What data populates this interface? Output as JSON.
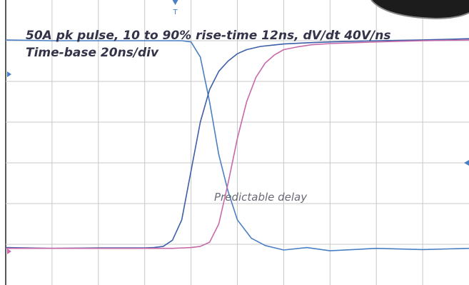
{
  "chart_data": {
    "type": "line",
    "title": "50A pk pulse, 10 to 90% rise-time 12ns, dV/dt 40V/ns",
    "subtitle": "Time-base 20ns/div",
    "xlabel": "",
    "ylabel": "",
    "x_divisions": 10,
    "y_divisions": 7,
    "grid": true,
    "xlim": [
      0,
      10
    ],
    "ylim": [
      0,
      7
    ],
    "annotations": [
      {
        "text": "Predictable delay"
      }
    ],
    "series": [
      {
        "color": "#4a7fc4",
        "x": [
          0,
          1,
          2,
          3,
          3.8,
          4.0,
          4.2,
          4.4,
          4.6,
          4.8,
          5.0,
          5.3,
          5.6,
          6.0,
          6.5,
          7,
          8,
          9,
          10
        ],
        "y": [
          6.02,
          6.0,
          6.0,
          6.0,
          6.0,
          5.97,
          5.6,
          4.5,
          3.2,
          2.3,
          1.6,
          1.15,
          0.97,
          0.86,
          0.92,
          0.84,
          0.9,
          0.87,
          0.9
        ]
      },
      {
        "color": "#3c5fa8",
        "x": [
          0,
          1,
          2,
          3,
          3.2,
          3.4,
          3.6,
          3.8,
          4.0,
          4.2,
          4.4,
          4.6,
          4.8,
          5.0,
          5.2,
          5.5,
          6.0,
          6.5,
          7,
          8,
          9,
          10
        ],
        "y": [
          0.92,
          0.9,
          0.91,
          0.91,
          0.92,
          0.95,
          1.1,
          1.6,
          2.8,
          4.0,
          4.8,
          5.25,
          5.5,
          5.68,
          5.78,
          5.86,
          5.92,
          5.95,
          5.97,
          6.0,
          6.02,
          6.05
        ]
      },
      {
        "color": "#c86aa9",
        "x": [
          0,
          1,
          2,
          3,
          3.6,
          4.0,
          4.2,
          4.4,
          4.6,
          4.8,
          5.0,
          5.2,
          5.4,
          5.6,
          5.8,
          6.0,
          6.3,
          6.6,
          7,
          8,
          9,
          10
        ],
        "y": [
          0.9,
          0.9,
          0.9,
          0.9,
          0.9,
          0.92,
          0.95,
          1.05,
          1.5,
          2.5,
          3.6,
          4.5,
          5.1,
          5.45,
          5.65,
          5.78,
          5.85,
          5.9,
          5.93,
          5.97,
          6.0,
          6.02
        ]
      }
    ]
  }
}
